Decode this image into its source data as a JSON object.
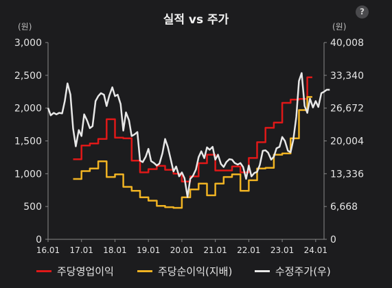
{
  "header": {
    "title": "실적 vs 주가",
    "help_label": "?"
  },
  "chart_data": {
    "type": "line",
    "title": "실적 vs 주가",
    "left_axis_unit": "(원)",
    "right_axis_unit": "(원)",
    "left_ylim": [
      0,
      3000
    ],
    "right_ylim": [
      0,
      40008
    ],
    "left_ticks": [
      "0",
      "500",
      "1,000",
      "1,500",
      "2,000",
      "2,500",
      "3,000"
    ],
    "right_ticks": [
      "0",
      "6,668",
      "13,336",
      "20,004",
      "26,672",
      "33,340",
      "40,008"
    ],
    "xlim": [
      2016.0,
      2024.25
    ],
    "x_ticks": [
      "16.01",
      "17.01",
      "18.01",
      "19.01",
      "20.01",
      "21.01",
      "22.01",
      "23.01",
      "24.01"
    ],
    "grid": false,
    "legend_position": "bottom",
    "series": [
      {
        "name": "주당영업이익",
        "axis": "left",
        "color": "#e01818",
        "step": true,
        "points": [
          [
            2016.75,
            1220
          ],
          [
            2017.0,
            1430
          ],
          [
            2017.25,
            1460
          ],
          [
            2017.5,
            1530
          ],
          [
            2017.75,
            1830
          ],
          [
            2018.0,
            1550
          ],
          [
            2018.25,
            1540
          ],
          [
            2018.5,
            1200
          ],
          [
            2018.75,
            1020
          ],
          [
            2019.0,
            1070
          ],
          [
            2019.25,
            1120
          ],
          [
            2019.5,
            1060
          ],
          [
            2019.75,
            1000
          ],
          [
            2020.0,
            880
          ],
          [
            2020.25,
            960
          ],
          [
            2020.5,
            1160
          ],
          [
            2020.75,
            1290
          ],
          [
            2021.0,
            1050
          ],
          [
            2021.25,
            1050
          ],
          [
            2021.5,
            1110
          ],
          [
            2021.75,
            1020
          ],
          [
            2022.0,
            1240
          ],
          [
            2022.25,
            1480
          ],
          [
            2022.5,
            1700
          ],
          [
            2022.75,
            1780
          ],
          [
            2023.0,
            2080
          ],
          [
            2023.25,
            2130
          ],
          [
            2023.5,
            2140
          ],
          [
            2023.75,
            2470
          ],
          [
            2023.9,
            2470
          ]
        ]
      },
      {
        "name": "주당순이익(지배)",
        "axis": "left",
        "color": "#f0b323",
        "step": true,
        "points": [
          [
            2016.75,
            920
          ],
          [
            2017.0,
            1040
          ],
          [
            2017.25,
            1080
          ],
          [
            2017.5,
            1190
          ],
          [
            2017.75,
            950
          ],
          [
            2018.0,
            990
          ],
          [
            2018.25,
            800
          ],
          [
            2018.5,
            740
          ],
          [
            2018.75,
            640
          ],
          [
            2019.0,
            590
          ],
          [
            2019.25,
            510
          ],
          [
            2019.5,
            490
          ],
          [
            2019.75,
            480
          ],
          [
            2020.0,
            640
          ],
          [
            2020.25,
            760
          ],
          [
            2020.5,
            850
          ],
          [
            2020.75,
            670
          ],
          [
            2021.0,
            850
          ],
          [
            2021.25,
            950
          ],
          [
            2021.5,
            990
          ],
          [
            2021.75,
            740
          ],
          [
            2022.0,
            900
          ],
          [
            2022.25,
            1080
          ],
          [
            2022.5,
            1090
          ],
          [
            2022.75,
            1290
          ],
          [
            2023.0,
            1310
          ],
          [
            2023.25,
            1540
          ],
          [
            2023.5,
            1970
          ],
          [
            2023.75,
            2170
          ],
          [
            2023.9,
            2170
          ]
        ]
      },
      {
        "name": "수정주가(우)",
        "axis": "right",
        "color": "#e8e8e8",
        "step": false,
        "points": [
          [
            2016.0,
            26700
          ],
          [
            2016.08,
            25200
          ],
          [
            2016.17,
            25700
          ],
          [
            2016.25,
            25400
          ],
          [
            2016.33,
            25700
          ],
          [
            2016.42,
            25600
          ],
          [
            2016.5,
            28100
          ],
          [
            2016.58,
            31700
          ],
          [
            2016.67,
            29400
          ],
          [
            2016.75,
            22500
          ],
          [
            2016.83,
            18900
          ],
          [
            2016.92,
            22200
          ],
          [
            2017.0,
            21000
          ],
          [
            2017.08,
            25400
          ],
          [
            2017.17,
            24100
          ],
          [
            2017.25,
            22600
          ],
          [
            2017.33,
            23000
          ],
          [
            2017.42,
            28100
          ],
          [
            2017.5,
            29100
          ],
          [
            2017.58,
            29700
          ],
          [
            2017.67,
            29400
          ],
          [
            2017.75,
            27100
          ],
          [
            2017.83,
            29200
          ],
          [
            2017.92,
            30900
          ],
          [
            2018.0,
            29100
          ],
          [
            2018.08,
            29400
          ],
          [
            2018.17,
            27500
          ],
          [
            2018.25,
            22100
          ],
          [
            2018.33,
            25800
          ],
          [
            2018.42,
            24200
          ],
          [
            2018.5,
            21000
          ],
          [
            2018.58,
            21300
          ],
          [
            2018.67,
            21800
          ],
          [
            2018.75,
            16000
          ],
          [
            2018.83,
            15700
          ],
          [
            2018.92,
            16800
          ],
          [
            2019.0,
            18400
          ],
          [
            2019.08,
            15900
          ],
          [
            2019.17,
            15500
          ],
          [
            2019.25,
            15000
          ],
          [
            2019.33,
            15400
          ],
          [
            2019.42,
            17500
          ],
          [
            2019.5,
            20400
          ],
          [
            2019.58,
            18800
          ],
          [
            2019.67,
            16200
          ],
          [
            2019.75,
            13800
          ],
          [
            2019.83,
            14800
          ],
          [
            2019.92,
            12800
          ],
          [
            2020.0,
            13600
          ],
          [
            2020.08,
            12400
          ],
          [
            2020.17,
            8600
          ],
          [
            2020.25,
            12300
          ],
          [
            2020.33,
            12900
          ],
          [
            2020.42,
            14200
          ],
          [
            2020.5,
            16700
          ],
          [
            2020.58,
            17900
          ],
          [
            2020.67,
            16500
          ],
          [
            2020.75,
            18700
          ],
          [
            2020.83,
            18200
          ],
          [
            2020.92,
            18800
          ],
          [
            2021.0,
            16200
          ],
          [
            2021.08,
            17200
          ],
          [
            2021.17,
            15300
          ],
          [
            2021.25,
            14700
          ],
          [
            2021.33,
            15700
          ],
          [
            2021.42,
            16300
          ],
          [
            2021.5,
            16200
          ],
          [
            2021.58,
            15500
          ],
          [
            2021.67,
            15200
          ],
          [
            2021.75,
            15500
          ],
          [
            2021.83,
            14700
          ],
          [
            2021.92,
            12300
          ],
          [
            2022.0,
            15000
          ],
          [
            2022.08,
            12800
          ],
          [
            2022.17,
            13500
          ],
          [
            2022.25,
            13700
          ],
          [
            2022.33,
            15100
          ],
          [
            2022.42,
            18000
          ],
          [
            2022.5,
            18100
          ],
          [
            2022.58,
            17600
          ],
          [
            2022.67,
            16200
          ],
          [
            2022.75,
            16800
          ],
          [
            2022.83,
            18500
          ],
          [
            2022.92,
            18800
          ],
          [
            2023.0,
            20800
          ],
          [
            2023.08,
            20000
          ],
          [
            2023.17,
            18000
          ],
          [
            2023.25,
            17700
          ],
          [
            2023.33,
            20200
          ],
          [
            2023.42,
            24900
          ],
          [
            2023.5,
            32200
          ],
          [
            2023.58,
            33800
          ],
          [
            2023.67,
            27100
          ],
          [
            2023.75,
            25700
          ],
          [
            2023.83,
            28600
          ],
          [
            2023.92,
            26800
          ],
          [
            2024.0,
            28100
          ],
          [
            2024.08,
            26900
          ],
          [
            2024.17,
            29700
          ],
          [
            2024.25,
            30000
          ],
          [
            2024.33,
            30400
          ],
          [
            2024.42,
            30400
          ]
        ]
      }
    ]
  }
}
